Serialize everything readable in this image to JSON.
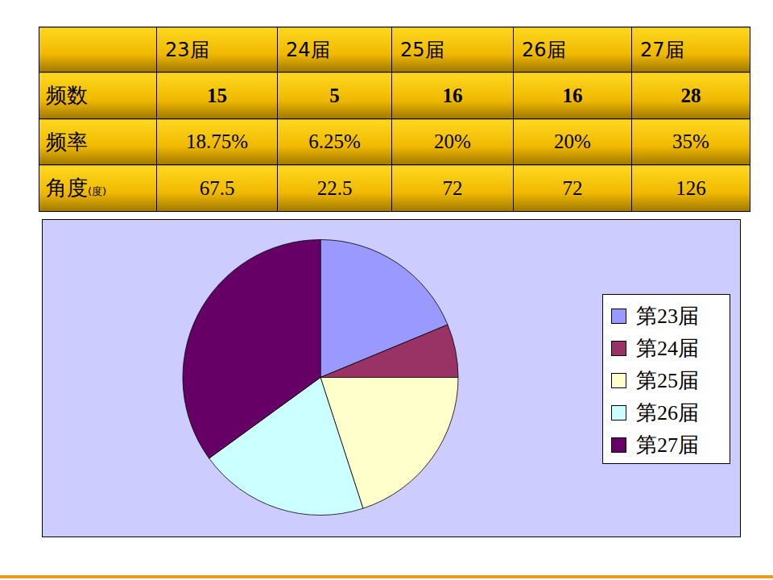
{
  "table": {
    "columns": [
      "23届",
      "24届",
      "25届",
      "26届",
      "27届"
    ],
    "rows": [
      {
        "label": "频数",
        "cells": [
          15,
          5,
          16,
          16,
          28
        ]
      },
      {
        "label": "频率",
        "cells": [
          "18.75%",
          "6.25%",
          "20%",
          "20%",
          "35%"
        ]
      },
      {
        "label": "角度",
        "unit": "(度)",
        "cells": [
          67.5,
          22.5,
          72,
          72,
          126
        ]
      }
    ]
  },
  "chart_data": {
    "type": "pie",
    "categories": [
      "第23届",
      "第24届",
      "第25届",
      "第26届",
      "第27届"
    ],
    "values": [
      15,
      5,
      16,
      16,
      28
    ],
    "colors": [
      "#9999ff",
      "#993366",
      "#ffffcc",
      "#ccffff",
      "#660066"
    ],
    "legend": "right"
  }
}
